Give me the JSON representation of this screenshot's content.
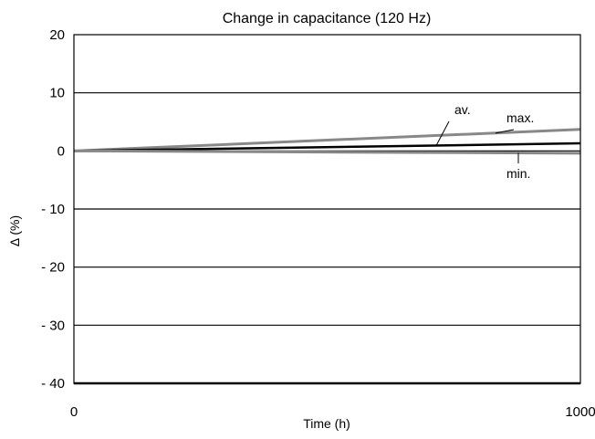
{
  "chart_data": {
    "type": "line",
    "title": "Change in capacitance (120 Hz)",
    "xlabel": "Time (h)",
    "ylabel": "Δ (%)",
    "xlim": [
      0,
      1000
    ],
    "ylim": [
      -40,
      20
    ],
    "x_ticks": [
      {
        "value": 0,
        "label": "0"
      },
      {
        "value": 1000,
        "label": "1000"
      }
    ],
    "y_ticks": [
      {
        "value": 20,
        "label": "20"
      },
      {
        "value": 10,
        "label": "10"
      },
      {
        "value": 0,
        "label": "0"
      },
      {
        "value": -10,
        "label": "- 10"
      },
      {
        "value": -20,
        "label": "- 20"
      },
      {
        "value": -30,
        "label": "- 30"
      },
      {
        "value": -40,
        "label": "- 40"
      }
    ],
    "grid": "horizontal",
    "series": [
      {
        "name": "max.",
        "x": [
          0,
          1000
        ],
        "y": [
          0,
          3.7
        ],
        "color": "#888888"
      },
      {
        "name": "av.",
        "x": [
          0,
          1000
        ],
        "y": [
          0,
          1.3
        ],
        "color": "#000000"
      },
      {
        "name": "min.",
        "x": [
          0,
          1000
        ],
        "y": [
          0,
          -0.4
        ],
        "color": "#888888"
      }
    ]
  }
}
